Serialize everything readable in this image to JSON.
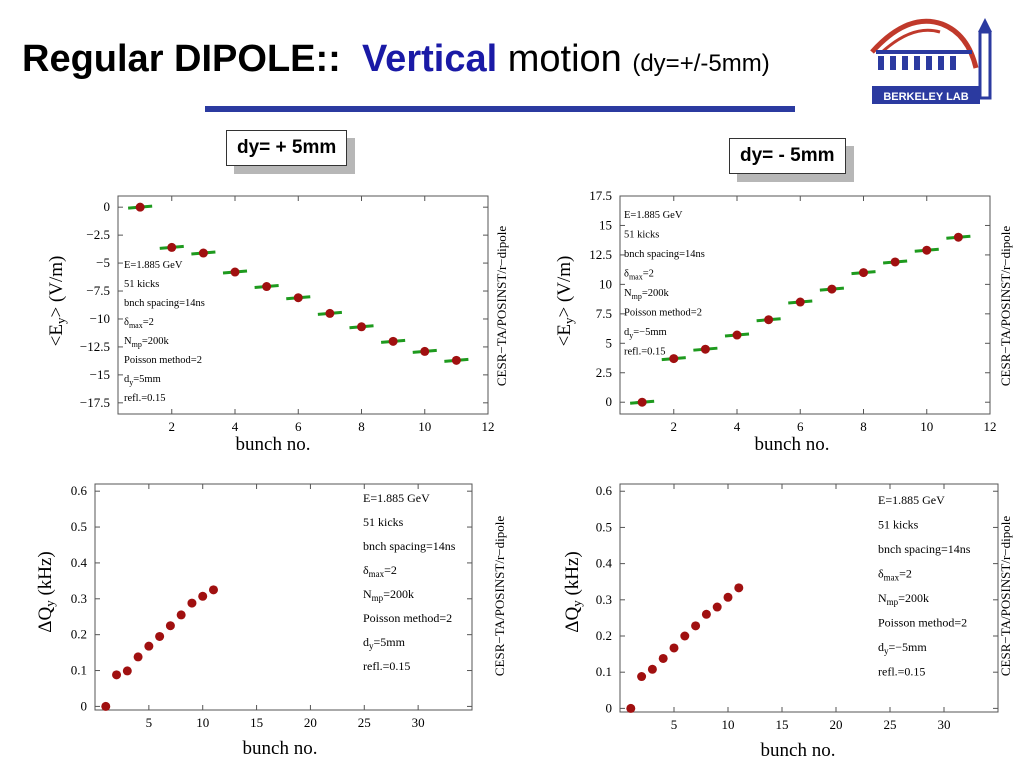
{
  "slide": {
    "title_bold": "Regular DIPOLE",
    "title_sep": "::",
    "title_vertical": "Vertical",
    "title_motion": "motion",
    "title_small": "(dy=+/-5mm)",
    "callout_left": "dy= + 5mm",
    "callout_right": "dy= - 5mm",
    "logo_text": "BERKELEY LAB",
    "colors": {
      "title_blue": "#1a1aa6",
      "rule": "#2b3aa0",
      "marker": "#a01010",
      "error_bar": "#1e9a1e"
    }
  },
  "chart_data": [
    {
      "type": "scatter",
      "xlabel": "bunch no.",
      "ylabel_parts": [
        "<E",
        "y",
        "> (V/m)"
      ],
      "side_label": "CESR−TA/POSINST/r−dipole",
      "xlim": [
        0.3,
        12
      ],
      "ylim": [
        -18.5,
        1
      ],
      "xticks": [
        "2",
        "4",
        "6",
        "8",
        "10",
        "12"
      ],
      "xtick_values": [
        2,
        4,
        6,
        8,
        10,
        12
      ],
      "yticks": [
        "0",
        "−2.5",
        "−5",
        "−7.5",
        "−10",
        "−12.5",
        "−15",
        "−17.5"
      ],
      "ytick_values": [
        0,
        -2.5,
        -5,
        -7.5,
        -10,
        -12.5,
        -15,
        -17.5
      ],
      "x": [
        1,
        2,
        3,
        4,
        5,
        6,
        7,
        8,
        9,
        10,
        11
      ],
      "y": [
        0,
        -3.6,
        -4.1,
        -5.8,
        -7.1,
        -8.1,
        -9.5,
        -10.7,
        -12.0,
        -12.9,
        -13.7
      ],
      "error_bar_color": "#1e9a1e",
      "marker_color": "#a01010",
      "legend_placement": "left",
      "annotation": [
        {
          "t": "E=1.885 GeV"
        },
        {
          "t": "51 kicks"
        },
        {
          "t": "bnch spacing=14ns"
        },
        {
          "pre": "δ",
          "sub": "max",
          "post": "=2"
        },
        {
          "pre": "N",
          "sub": "mp",
          "post": "=200k"
        },
        {
          "t": "Poisson method=2"
        },
        {
          "pre": "d",
          "sub": "y",
          "post": "=5mm"
        },
        {
          "t": "refl.=0.15"
        }
      ]
    },
    {
      "type": "scatter",
      "xlabel": "bunch no.",
      "ylabel_parts": [
        "<E",
        "y",
        "> (V/m)"
      ],
      "side_label": "CESR−TA/POSINST/r−dipole",
      "xlim": [
        0.3,
        12
      ],
      "ylim": [
        -1,
        17.5
      ],
      "xticks": [
        "2",
        "4",
        "6",
        "8",
        "10",
        "12"
      ],
      "xtick_values": [
        2,
        4,
        6,
        8,
        10,
        12
      ],
      "yticks": [
        "0",
        "2.5",
        "5",
        "7.5",
        "10",
        "12.5",
        "15",
        "17.5"
      ],
      "ytick_values": [
        0,
        2.5,
        5,
        7.5,
        10,
        12.5,
        15,
        17.5
      ],
      "x": [
        1,
        2,
        3,
        4,
        5,
        6,
        7,
        8,
        9,
        10,
        11
      ],
      "y": [
        0,
        3.7,
        4.5,
        5.7,
        7.0,
        8.5,
        9.6,
        11.0,
        11.9,
        12.9,
        14.0
      ],
      "error_bar_color": "#1e9a1e",
      "marker_color": "#a01010",
      "legend_placement": "top-left",
      "annotation": [
        {
          "t": "E=1.885 GeV"
        },
        {
          "t": "51 kicks"
        },
        {
          "t": "bnch spacing=14ns"
        },
        {
          "pre": "δ",
          "sub": "max",
          "post": "=2"
        },
        {
          "pre": "N",
          "sub": "mp",
          "post": "=200k"
        },
        {
          "t": "Poisson method=2"
        },
        {
          "pre": "d",
          "sub": "y",
          "post": "=−5mm"
        },
        {
          "t": "refl.=0.15"
        }
      ]
    },
    {
      "type": "scatter",
      "xlabel": "bunch no.",
      "ylabel_parts": [
        "ΔQ",
        "y",
        " (kHz)"
      ],
      "side_label": "CESR−TA/POSINST/r−dipole",
      "xlim": [
        0,
        35
      ],
      "ylim": [
        -0.01,
        0.62
      ],
      "xticks": [
        "5",
        "10",
        "15",
        "20",
        "25",
        "30"
      ],
      "xtick_values": [
        5,
        10,
        15,
        20,
        25,
        30
      ],
      "yticks": [
        "0",
        "0.1",
        "0.2",
        "0.3",
        "0.4",
        "0.5",
        "0.6"
      ],
      "ytick_values": [
        0,
        0.1,
        0.2,
        0.3,
        0.4,
        0.5,
        0.6
      ],
      "x": [
        1,
        2,
        3,
        4,
        5,
        6,
        7,
        8,
        9,
        10,
        11
      ],
      "y": [
        0.0,
        0.088,
        0.099,
        0.138,
        0.168,
        0.195,
        0.225,
        0.255,
        0.288,
        0.307,
        0.325
      ],
      "marker_color": "#a01010",
      "legend_placement": "top-right",
      "annotation": [
        {
          "t": "E=1.885 GeV"
        },
        {
          "t": "51 kicks"
        },
        {
          "t": "bnch spacing=14ns"
        },
        {
          "pre": "δ",
          "sub": "max",
          "post": "=2"
        },
        {
          "pre": "N",
          "sub": "mp",
          "post": "=200k"
        },
        {
          "t": "Poisson method=2"
        },
        {
          "pre": "d",
          "sub": "y",
          "post": "=5mm"
        },
        {
          "t": "refl.=0.15"
        }
      ]
    },
    {
      "type": "scatter",
      "xlabel": "bunch no.",
      "ylabel_parts": [
        "ΔQ",
        "y",
        " (kHz)"
      ],
      "side_label": "CESR−TA/POSINST/r−dipole",
      "xlim": [
        0,
        35
      ],
      "ylim": [
        -0.01,
        0.62
      ],
      "xticks": [
        "5",
        "10",
        "15",
        "20",
        "25",
        "30"
      ],
      "xtick_values": [
        5,
        10,
        15,
        20,
        25,
        30
      ],
      "yticks": [
        "0",
        "0.1",
        "0.2",
        "0.3",
        "0.4",
        "0.5",
        "0.6"
      ],
      "ytick_values": [
        0,
        0.1,
        0.2,
        0.3,
        0.4,
        0.5,
        0.6
      ],
      "x": [
        1,
        2,
        3,
        4,
        5,
        6,
        7,
        8,
        9,
        10,
        11
      ],
      "y": [
        0.0,
        0.088,
        0.108,
        0.138,
        0.167,
        0.2,
        0.228,
        0.26,
        0.28,
        0.307,
        0.333
      ],
      "marker_color": "#a01010",
      "legend_placement": "top-right",
      "annotation": [
        {
          "t": "E=1.885 GeV"
        },
        {
          "t": "51 kicks"
        },
        {
          "t": "bnch spacing=14ns"
        },
        {
          "pre": "δ",
          "sub": "max",
          "post": "=2"
        },
        {
          "pre": "N",
          "sub": "mp",
          "post": "=200k"
        },
        {
          "t": "Poisson method=2"
        },
        {
          "pre": "d",
          "sub": "y",
          "post": "=−5mm"
        },
        {
          "t": "refl.=0.15"
        }
      ]
    }
  ]
}
